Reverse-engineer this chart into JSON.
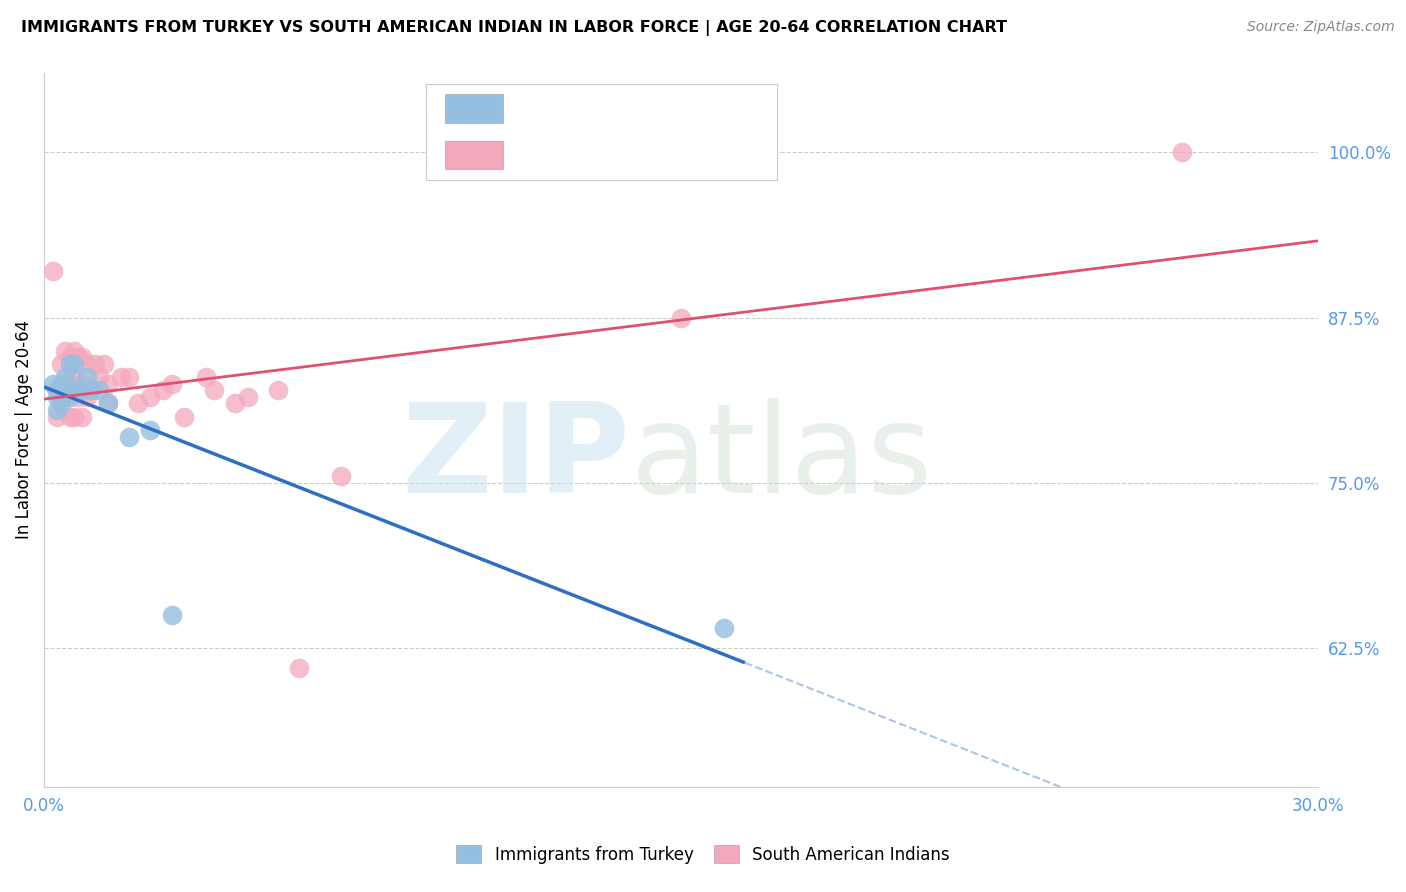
{
  "title": "IMMIGRANTS FROM TURKEY VS SOUTH AMERICAN INDIAN IN LABOR FORCE | AGE 20-64 CORRELATION CHART",
  "source": "Source: ZipAtlas.com",
  "ylabel": "In Labor Force | Age 20-64",
  "xlim": [
    0.0,
    0.3
  ],
  "ylim": [
    0.52,
    1.06
  ],
  "yticks_right": [
    0.625,
    0.75,
    0.875,
    1.0
  ],
  "ytick_right_labels": [
    "62.5%",
    "75.0%",
    "87.5%",
    "100.0%"
  ],
  "blue_scatter_color": "#95bfe0",
  "pink_scatter_color": "#f4a8bc",
  "blue_line_color": "#2e6fc4",
  "pink_line_color": "#e05070",
  "blue_line_solid_end": 0.165,
  "turkey_x": [
    0.002,
    0.003,
    0.003,
    0.004,
    0.004,
    0.004,
    0.005,
    0.005,
    0.006,
    0.006,
    0.007,
    0.008,
    0.009,
    0.01,
    0.011,
    0.013,
    0.015,
    0.02,
    0.025,
    0.03,
    0.16
  ],
  "turkey_y": [
    0.825,
    0.815,
    0.805,
    0.825,
    0.82,
    0.81,
    0.83,
    0.82,
    0.84,
    0.815,
    0.84,
    0.82,
    0.82,
    0.83,
    0.82,
    0.82,
    0.81,
    0.785,
    0.79,
    0.65,
    0.64
  ],
  "sam_x": [
    0.002,
    0.003,
    0.003,
    0.004,
    0.004,
    0.005,
    0.005,
    0.006,
    0.006,
    0.006,
    0.007,
    0.007,
    0.007,
    0.008,
    0.008,
    0.009,
    0.009,
    0.009,
    0.01,
    0.01,
    0.011,
    0.012,
    0.013,
    0.014,
    0.015,
    0.015,
    0.018,
    0.02,
    0.022,
    0.025,
    0.028,
    0.03,
    0.033,
    0.038,
    0.04,
    0.045,
    0.048,
    0.055,
    0.06,
    0.07,
    0.15,
    0.268
  ],
  "sam_y": [
    0.91,
    0.82,
    0.8,
    0.84,
    0.815,
    0.85,
    0.82,
    0.845,
    0.825,
    0.8,
    0.85,
    0.83,
    0.8,
    0.845,
    0.815,
    0.845,
    0.825,
    0.8,
    0.84,
    0.815,
    0.82,
    0.84,
    0.83,
    0.84,
    0.825,
    0.81,
    0.83,
    0.83,
    0.81,
    0.815,
    0.82,
    0.825,
    0.8,
    0.83,
    0.82,
    0.81,
    0.815,
    0.82,
    0.61,
    0.755,
    0.875,
    1.0
  ]
}
